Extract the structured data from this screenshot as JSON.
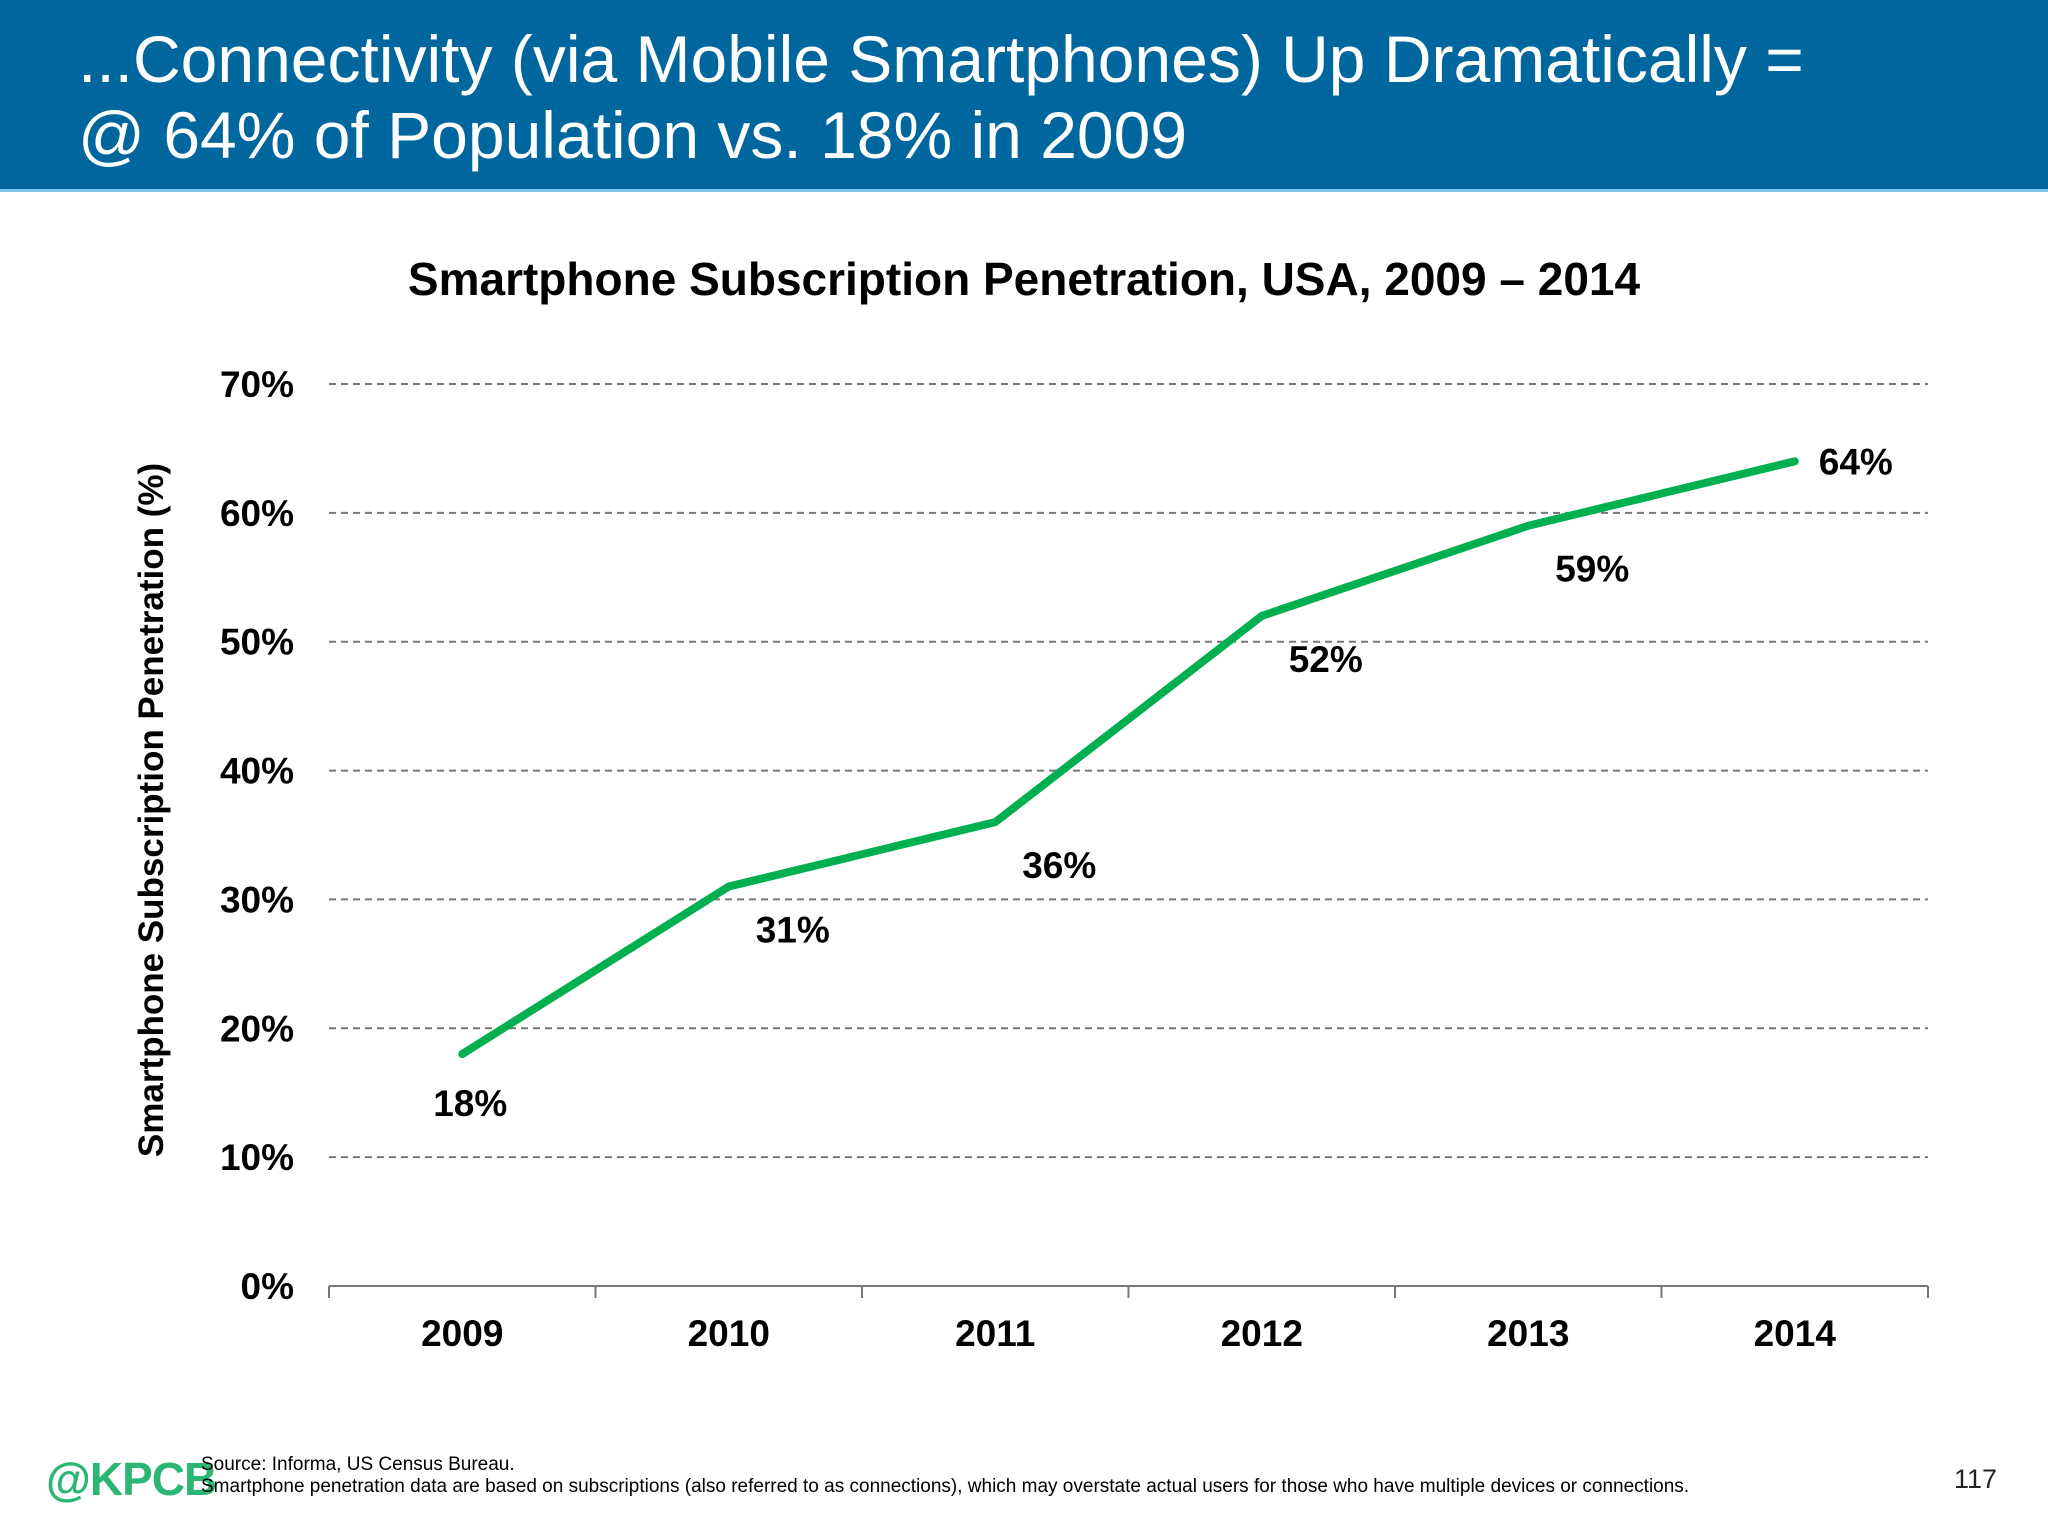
{
  "header": {
    "title_line1": "...Connectivity (via Mobile Smartphones) Up Dramatically =",
    "title_line2": "@ 64% of Population vs. 18% in 2009",
    "background": "#00669e"
  },
  "chart_data": {
    "type": "line",
    "title": "Smartphone Subscription Penetration, USA, 2009 – 2014",
    "xlabel": "",
    "ylabel": "Smartphone Subscription Penetration (%)",
    "categories": [
      "2009",
      "2010",
      "2011",
      "2012",
      "2013",
      "2014"
    ],
    "values": [
      18,
      31,
      36,
      52,
      59,
      64
    ],
    "data_labels": [
      "18%",
      "31%",
      "36%",
      "52%",
      "59%",
      "64%"
    ],
    "ylim": [
      0,
      70
    ],
    "yticks": [
      "0%",
      "10%",
      "20%",
      "30%",
      "40%",
      "50%",
      "60%",
      "70%"
    ],
    "grid": true,
    "grid_style": "dashed",
    "line_color": "#00b050",
    "legend": "none"
  },
  "footer": {
    "logo": "@KPCB",
    "source": "Source: Informa, US Census Bureau.",
    "note": "Smartphone penetration data are based on subscriptions (also referred to as connections), which may overstate actual users for those who have multiple devices or connections.",
    "page_number": "117"
  }
}
